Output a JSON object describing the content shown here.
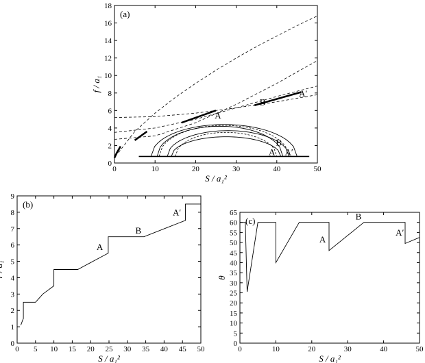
{
  "chart_data": [
    {
      "type": "line",
      "panel_label": "(a)",
      "xlabel": "S / a₁²",
      "ylabel": "f / a₁",
      "xlim": [
        0,
        50
      ],
      "ylim": [
        0,
        18
      ],
      "xticks": [
        0,
        10,
        20,
        30,
        40,
        50
      ],
      "yticks": [
        0,
        2,
        4,
        6,
        8,
        10,
        12,
        14,
        16,
        18
      ],
      "grid": false,
      "dashed_curves": [
        {
          "x": [
            1,
            5,
            10,
            15,
            20,
            25,
            30,
            35,
            40,
            45,
            50
          ],
          "y": [
            1.2,
            3.6,
            5.7,
            7.5,
            9.1,
            10.6,
            12.0,
            13.3,
            14.5,
            15.7,
            16.8
          ]
        },
        {
          "x": [
            0,
            10,
            20,
            30,
            40,
            50
          ],
          "y": [
            2.7,
            3.1,
            4.6,
            6.7,
            9.1,
            11.7
          ]
        },
        {
          "x": [
            0,
            10,
            20,
            30,
            40,
            50
          ],
          "y": [
            3.5,
            4.0,
            5.0,
            6.3,
            7.6,
            8.8
          ]
        },
        {
          "x": [
            0,
            10,
            20,
            30,
            40,
            50
          ],
          "y": [
            5.2,
            5.3,
            5.7,
            6.3,
            7.0,
            7.8
          ]
        }
      ],
      "bold_segments": [
        {
          "x": [
            0,
            0.5,
            1.0,
            1.5
          ],
          "y": [
            0.6,
            1.1,
            1.5,
            1.9
          ]
        },
        {
          "x": [
            5,
            8
          ],
          "y": [
            2.6,
            3.6
          ]
        },
        {
          "x": [
            16.5,
            25
          ],
          "y": [
            4.6,
            6.0
          ]
        },
        {
          "x": [
            34.5,
            46
          ],
          "y": [
            6.6,
            8.1
          ]
        }
      ],
      "baseline": {
        "x": [
          6,
          48
        ],
        "y": 0.75
      },
      "arcs": [
        {
          "x0": 14,
          "x1": 41,
          "peak": 3.0
        },
        {
          "x0": 13,
          "x1": 43,
          "peak": 3.7
        },
        {
          "x0": 10.5,
          "x1": 41.5,
          "peak": 4.2
        },
        {
          "x0": 9,
          "x1": 45,
          "peak": 4.4
        },
        {
          "x0": 11,
          "x1": 43,
          "peak": 4.3
        },
        {
          "x0": 15,
          "x1": 40,
          "peak": 3.5
        }
      ],
      "annotations": [
        {
          "text": "A",
          "x": 25.5,
          "y": 5.1
        },
        {
          "text": "B",
          "x": 36.5,
          "y": 6.6
        },
        {
          "text": "A′",
          "x": 46.5,
          "y": 7.6
        },
        {
          "text": "B",
          "x": 40.5,
          "y": 2.0
        },
        {
          "text": "A",
          "x": 38.8,
          "y": 0.9
        },
        {
          "text": "A′",
          "x": 43.0,
          "y": 0.9
        }
      ]
    },
    {
      "type": "line",
      "panel_label": "(b)",
      "xlabel": "S / a₁²",
      "ylabel": "r / a₁",
      "xlim": [
        0,
        50
      ],
      "ylim": [
        0,
        9
      ],
      "xticks": [
        0,
        5,
        10,
        15,
        20,
        25,
        30,
        35,
        40,
        45,
        50
      ],
      "yticks": [
        0,
        1,
        2,
        3,
        4,
        5,
        6,
        7,
        8,
        9
      ],
      "grid": false,
      "x": [
        1,
        1.5,
        1.7,
        1.7,
        5,
        7,
        10,
        10,
        16.5,
        24.8,
        24.8,
        34.5,
        45.8,
        45.8,
        50
      ],
      "y": [
        1.1,
        1.4,
        1.5,
        2.5,
        2.5,
        3.0,
        3.5,
        4.5,
        4.5,
        5.5,
        6.5,
        6.5,
        7.5,
        8.5,
        8.5
      ],
      "annotations": [
        {
          "text": "A",
          "x": 22.5,
          "y": 5.7
        },
        {
          "text": "B",
          "x": 33.0,
          "y": 6.7
        },
        {
          "text": "A′",
          "x": 43.5,
          "y": 7.8
        }
      ]
    },
    {
      "type": "line",
      "panel_label": "(c)",
      "xlabel": "S / a₁²",
      "ylabel": "θ",
      "xlim": [
        0,
        50
      ],
      "ylim": [
        0,
        65
      ],
      "xticks": [
        0,
        10,
        20,
        30,
        40,
        50
      ],
      "yticks": [
        0,
        5,
        10,
        15,
        20,
        25,
        30,
        35,
        40,
        45,
        50,
        55,
        60,
        65
      ],
      "grid": false,
      "x": [
        0,
        1.5,
        1.5,
        2,
        5,
        5.2,
        10,
        10,
        16.5,
        24.8,
        24.8,
        34.5,
        46,
        46,
        50
      ],
      "y": [
        60,
        60,
        60,
        25.5,
        60,
        60,
        60,
        40,
        60,
        60,
        46,
        60,
        60,
        49.5,
        52.5
      ],
      "annotations": [
        {
          "text": "A",
          "x": 23.0,
          "y": 50.0
        },
        {
          "text": "B",
          "x": 33.0,
          "y": 61.5
        },
        {
          "text": "A′",
          "x": 44.5,
          "y": 53.5
        }
      ]
    }
  ]
}
